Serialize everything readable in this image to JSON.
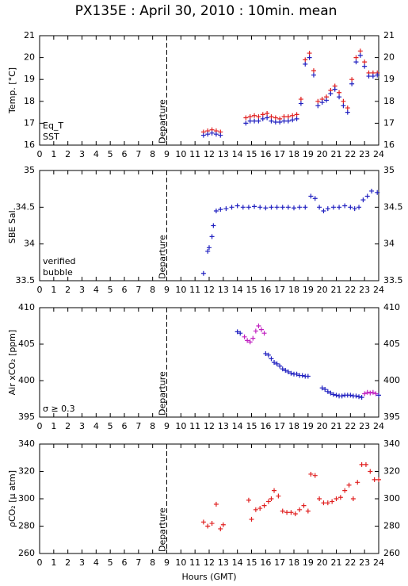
{
  "chart_data": [
    {
      "type": "scatter",
      "title": "PX135E : April 30, 2010 : 10min. mean",
      "ylabel": "Temp. [°C]",
      "xlim": [
        0,
        24
      ],
      "xticks": [
        0,
        1,
        2,
        3,
        4,
        5,
        6,
        7,
        8,
        9,
        10,
        11,
        12,
        13,
        14,
        15,
        16,
        17,
        18,
        19,
        20,
        21,
        22,
        23,
        24
      ],
      "ylim": [
        16,
        21
      ],
      "yticks": [
        16,
        17,
        18,
        19,
        20,
        21
      ],
      "departure": {
        "x": 9,
        "label": "Departure"
      },
      "series": [
        {
          "name": "Eq_T",
          "color": "#e02020",
          "x": [
            11.6,
            11.9,
            12.2,
            12.5,
            12.8,
            14.6,
            14.9,
            15.2,
            15.5,
            15.8,
            16.1,
            16.4,
            16.7,
            17.0,
            17.3,
            17.6,
            17.9,
            18.2,
            18.5,
            18.8,
            19.1,
            19.4,
            19.7,
            20.0,
            20.3,
            20.6,
            20.9,
            21.2,
            21.5,
            21.8,
            22.1,
            22.4,
            22.7,
            23.0,
            23.3,
            23.6,
            23.9
          ],
          "values": [
            16.6,
            16.65,
            16.7,
            16.65,
            16.6,
            17.25,
            17.3,
            17.35,
            17.3,
            17.4,
            17.45,
            17.3,
            17.25,
            17.2,
            17.3,
            17.3,
            17.35,
            17.4,
            18.1,
            19.9,
            20.2,
            19.4,
            18.0,
            18.1,
            18.2,
            18.5,
            18.7,
            18.4,
            18.0,
            17.7,
            19.0,
            20.0,
            20.3,
            19.8,
            19.3,
            19.3,
            19.3
          ]
        },
        {
          "name": "SST",
          "color": "#2020c0",
          "x": [
            11.6,
            11.9,
            12.2,
            12.5,
            12.8,
            14.6,
            14.9,
            15.2,
            15.5,
            15.8,
            16.1,
            16.4,
            16.7,
            17.0,
            17.3,
            17.6,
            17.9,
            18.2,
            18.5,
            18.8,
            19.1,
            19.4,
            19.7,
            20.0,
            20.3,
            20.6,
            20.9,
            21.2,
            21.5,
            21.8,
            22.1,
            22.4,
            22.7,
            23.0,
            23.3,
            23.6,
            23.9
          ],
          "values": [
            16.45,
            16.5,
            16.55,
            16.5,
            16.45,
            17.0,
            17.1,
            17.1,
            17.1,
            17.2,
            17.25,
            17.1,
            17.05,
            17.05,
            17.1,
            17.1,
            17.15,
            17.2,
            17.9,
            19.7,
            20.0,
            19.2,
            17.8,
            17.95,
            18.05,
            18.35,
            18.55,
            18.2,
            17.8,
            17.5,
            18.8,
            19.8,
            20.1,
            19.6,
            19.15,
            19.15,
            19.2
          ]
        }
      ]
    },
    {
      "type": "scatter",
      "ylabel": "SBE Sal.",
      "xlim": [
        0,
        24
      ],
      "xticks": [
        0,
        1,
        2,
        3,
        4,
        5,
        6,
        7,
        8,
        9,
        10,
        11,
        12,
        13,
        14,
        15,
        16,
        17,
        18,
        19,
        20,
        21,
        22,
        23,
        24
      ],
      "ylim": [
        33.5,
        35
      ],
      "yticks": [
        33.5,
        34,
        34.5,
        35
      ],
      "departure": {
        "x": 9,
        "label": "Departure"
      },
      "series": [
        {
          "name": "verified",
          "color": "#2020c0",
          "x": [
            11.6,
            11.9,
            12.0,
            12.2,
            12.3,
            12.5,
            12.8,
            13.2,
            13.6,
            14.0,
            14.4,
            14.8,
            15.2,
            15.6,
            16.0,
            16.4,
            16.8,
            17.2,
            17.6,
            18.0,
            18.4,
            18.8,
            19.2,
            19.5,
            19.8,
            20.1,
            20.4,
            20.8,
            21.2,
            21.6,
            22.0,
            22.3,
            22.6,
            22.9,
            23.2,
            23.5,
            23.9
          ],
          "values": [
            33.6,
            33.9,
            33.95,
            34.1,
            34.25,
            34.45,
            34.47,
            34.48,
            34.5,
            34.52,
            34.5,
            34.5,
            34.51,
            34.5,
            34.49,
            34.5,
            34.5,
            34.5,
            34.5,
            34.49,
            34.5,
            34.5,
            34.65,
            34.62,
            34.5,
            34.45,
            34.48,
            34.5,
            34.5,
            34.52,
            34.5,
            34.48,
            34.5,
            34.6,
            34.65,
            34.72,
            34.7
          ]
        },
        {
          "name": "bubble",
          "color": "#c020c0",
          "x": [],
          "values": []
        }
      ]
    },
    {
      "type": "scatter",
      "ylabel": "Air xCO₂ [ppm]",
      "xlim": [
        0,
        24
      ],
      "xticks": [
        0,
        1,
        2,
        3,
        4,
        5,
        6,
        7,
        8,
        9,
        10,
        11,
        12,
        13,
        14,
        15,
        16,
        17,
        18,
        19,
        20,
        21,
        22,
        23,
        24
      ],
      "ylim": [
        395,
        410
      ],
      "yticks": [
        395,
        400,
        405,
        410
      ],
      "departure": {
        "x": 9,
        "label": "Departure"
      },
      "series": [
        {
          "color": "#2020c0",
          "x": [
            14.0,
            14.2,
            16.0,
            16.2,
            16.4,
            16.6,
            16.8,
            17.0,
            17.2,
            17.4,
            17.6,
            17.8,
            18.0,
            18.2,
            18.4,
            18.6,
            18.8,
            19.0,
            20.0,
            20.2,
            20.4,
            20.6,
            20.8,
            21.0,
            21.2,
            21.4,
            21.6,
            21.8,
            22.0,
            22.2,
            22.4,
            22.6,
            22.8,
            24.0
          ],
          "values": [
            406.7,
            406.5,
            403.7,
            403.5,
            403.0,
            402.5,
            402.3,
            402.0,
            401.6,
            401.4,
            401.2,
            401.0,
            400.9,
            400.9,
            400.7,
            400.7,
            400.6,
            400.6,
            399.0,
            398.8,
            398.5,
            398.3,
            398.1,
            398.0,
            397.9,
            397.9,
            398.0,
            398.0,
            398.0,
            397.9,
            397.9,
            397.8,
            397.7,
            398.0
          ]
        },
        {
          "name": "σ ≥ 0.3",
          "color": "#c020c0",
          "x": [
            14.5,
            14.7,
            14.9,
            15.1,
            15.3,
            15.5,
            15.7,
            15.9,
            23.0,
            23.2,
            23.4,
            23.6,
            23.8
          ],
          "values": [
            406.0,
            405.5,
            405.3,
            405.8,
            406.8,
            407.5,
            407.0,
            406.5,
            398.2,
            398.4,
            398.3,
            398.4,
            398.2
          ]
        }
      ]
    },
    {
      "type": "scatter",
      "ylabel": "ρCO₂ [μ atm]",
      "xlabel": "Hours (GMT)",
      "xlim": [
        0,
        24
      ],
      "xticks": [
        0,
        1,
        2,
        3,
        4,
        5,
        6,
        7,
        8,
        9,
        10,
        11,
        12,
        13,
        14,
        15,
        16,
        17,
        18,
        19,
        20,
        21,
        22,
        23,
        24
      ],
      "ylim": [
        260,
        340
      ],
      "yticks": [
        260,
        280,
        300,
        320,
        340
      ],
      "departure": {
        "x": 9,
        "label": "Departure"
      },
      "series": [
        {
          "color": "#e02020",
          "x": [
            11.6,
            11.9,
            12.2,
            12.5,
            12.8,
            13.0,
            14.8,
            15.0,
            15.3,
            15.6,
            15.9,
            16.2,
            16.4,
            16.6,
            16.9,
            17.2,
            17.5,
            17.8,
            18.1,
            18.4,
            18.7,
            19.0,
            19.2,
            19.5,
            19.8,
            20.1,
            20.4,
            20.7,
            21.0,
            21.3,
            21.6,
            21.9,
            22.2,
            22.5,
            22.8,
            23.1,
            23.4,
            23.7,
            24.0
          ],
          "values": [
            283,
            280,
            282,
            296,
            278,
            281,
            299,
            285,
            292,
            293,
            295,
            298,
            300,
            306,
            302,
            291,
            290,
            290,
            289,
            292,
            295,
            291,
            318,
            317,
            300,
            297,
            297,
            298,
            300,
            301,
            306,
            310,
            300,
            312,
            325,
            325,
            320,
            314,
            314
          ]
        }
      ]
    }
  ]
}
